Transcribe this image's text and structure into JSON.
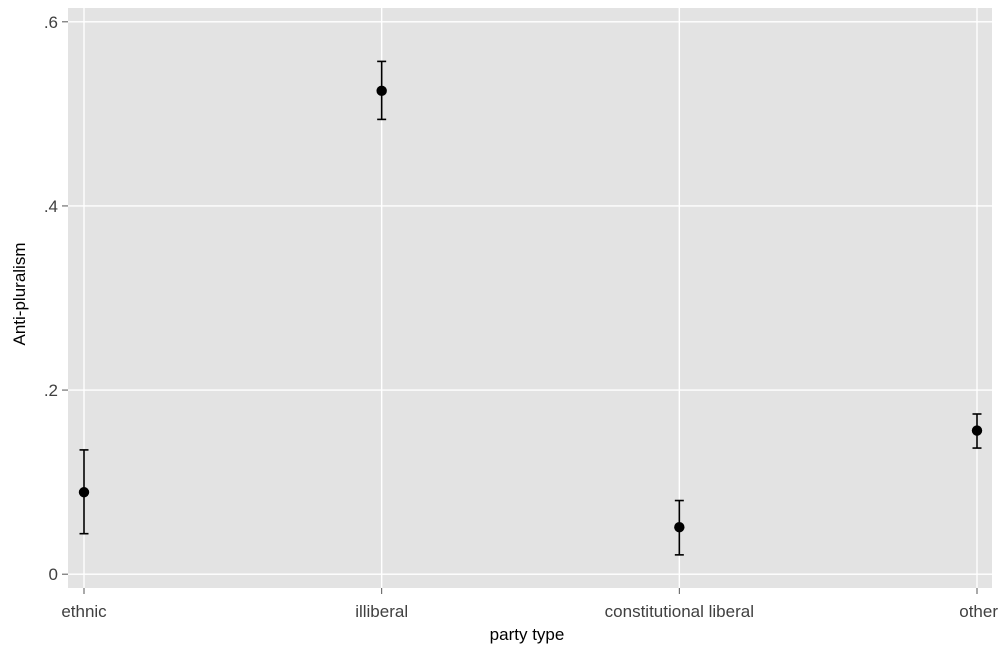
{
  "chart_data": {
    "type": "scatter",
    "xlabel": "party type",
    "ylabel": "Anti-pluralism",
    "categories": [
      "ethnic",
      "illiberal",
      "constitutional liberal",
      "other"
    ],
    "series": [
      {
        "values": [
          0.089,
          0.525,
          0.051,
          0.156
        ],
        "lower": [
          0.044,
          0.494,
          0.021,
          0.137
        ],
        "upper": [
          0.135,
          0.557,
          0.08,
          0.174
        ]
      }
    ],
    "y_ticks": [
      0,
      0.2,
      0.4,
      0.6
    ],
    "y_tick_labels": [
      "0",
      ".2",
      ".4",
      ".6"
    ],
    "ylim": [
      -0.015,
      0.615
    ],
    "grid": true,
    "colors": {
      "panel_background": "#e3e3e3",
      "grid": "#ffffff",
      "points": "#000000",
      "text": "#404040"
    }
  }
}
